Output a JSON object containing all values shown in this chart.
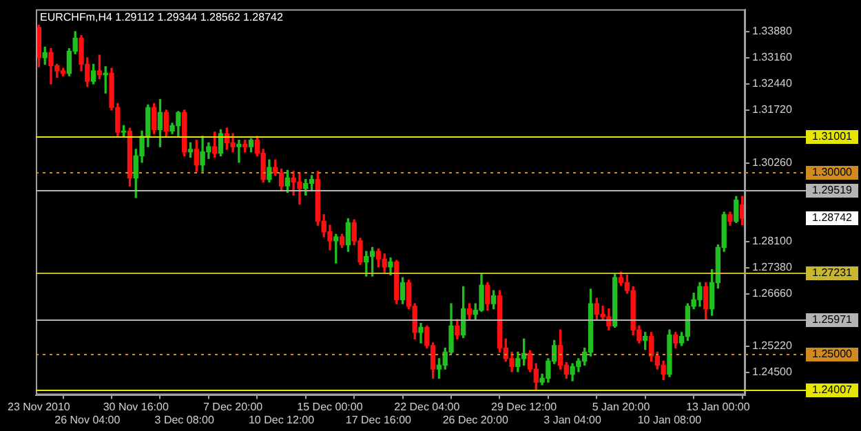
{
  "chart_data": {
    "type": "candlestick",
    "title": "EURCHFm,H4 1.29112 1.29344 1.28562 1.28742",
    "categories": [
      "23 Nov 2010",
      null,
      null,
      null,
      null,
      null,
      null,
      null,
      "26 Nov 04:00",
      null,
      null,
      null,
      null,
      null,
      null,
      null,
      "30 Nov 16:00",
      null,
      null,
      null,
      null,
      null,
      null,
      null,
      "3 Dec 08:00",
      null,
      null,
      null,
      null,
      null,
      null,
      null,
      "7 Dec 20:00",
      null,
      null,
      null,
      null,
      null,
      null,
      null,
      "10 Dec 12:00",
      null,
      null,
      null,
      null,
      null,
      null,
      null,
      "15 Dec 00:00",
      null,
      null,
      null,
      null,
      null,
      null,
      null,
      "17 Dec 16:00",
      null,
      null,
      null,
      null,
      null,
      null,
      null,
      "22 Dec 04:00",
      null,
      null,
      null,
      null,
      null,
      null,
      null,
      "26 Dec 20:00",
      null,
      null,
      null,
      null,
      null,
      null,
      null,
      "29 Dec 12:00",
      null,
      null,
      null,
      null,
      null,
      null,
      null,
      "3 Jan 04:00",
      null,
      null,
      null,
      null,
      null,
      null,
      null,
      "5 Jan 20:00",
      null,
      null,
      null,
      null,
      null,
      null,
      null,
      "10 Jan 08:00",
      null,
      null,
      null,
      null,
      null,
      null,
      null,
      "13 Jan 00:00",
      null,
      null,
      null,
      null
    ],
    "ohlc": [
      [
        1.3399,
        1.3406,
        1.3291,
        1.3316
      ],
      [
        1.3316,
        1.3345,
        1.3298,
        1.333
      ],
      [
        1.333,
        1.3341,
        1.3244,
        1.3294
      ],
      [
        1.3294,
        1.3298,
        1.3262,
        1.328
      ],
      [
        1.328,
        1.3287,
        1.3266,
        1.3273
      ],
      [
        1.3273,
        1.3341,
        1.3266,
        1.3334
      ],
      [
        1.3334,
        1.3388,
        1.3327,
        1.337
      ],
      [
        1.337,
        1.3377,
        1.328,
        1.3298
      ],
      [
        1.3298,
        1.3316,
        1.3237,
        1.3251
      ],
      [
        1.3251,
        1.3298,
        1.3244,
        1.328
      ],
      [
        1.328,
        1.3323,
        1.3258,
        1.3269
      ],
      [
        1.3269,
        1.3291,
        1.3219,
        1.3273
      ],
      [
        1.3273,
        1.3287,
        1.3172,
        1.3179
      ],
      [
        1.3179,
        1.319,
        1.31,
        1.3111
      ],
      [
        1.3111,
        1.3129,
        1.31,
        1.3114
      ],
      [
        1.3114,
        1.3122,
        1.2963,
        1.2985
      ],
      [
        1.2985,
        1.3064,
        1.2931,
        1.3046
      ],
      [
        1.3046,
        1.3114,
        1.3028,
        1.31
      ],
      [
        1.31,
        1.3186,
        1.3071,
        1.3179
      ],
      [
        1.3179,
        1.319,
        1.3107,
        1.3118
      ],
      [
        1.3118,
        1.3201,
        1.3071,
        1.3165
      ],
      [
        1.3165,
        1.3172,
        1.31,
        1.3114
      ],
      [
        1.3114,
        1.3136,
        1.3107,
        1.3129
      ],
      [
        1.3129,
        1.3168,
        1.31,
        1.3165
      ],
      [
        1.3165,
        1.3172,
        1.3046,
        1.3057
      ],
      [
        1.3057,
        1.3082,
        1.3042,
        1.3064
      ],
      [
        1.3064,
        1.3089,
        1.3003,
        1.3021
      ],
      [
        1.3021,
        1.31,
        1.3003,
        1.3057
      ],
      [
        1.3057,
        1.3082,
        1.3039,
        1.3071
      ],
      [
        1.3071,
        1.3111,
        1.3042,
        1.3053
      ],
      [
        1.3053,
        1.3118,
        1.3046,
        1.3107
      ],
      [
        1.3107,
        1.3122,
        1.3064,
        1.3082
      ],
      [
        1.3082,
        1.3107,
        1.3057,
        1.3071
      ],
      [
        1.3071,
        1.3089,
        1.3028,
        1.3078
      ],
      [
        1.3078,
        1.3089,
        1.3057,
        1.3071
      ],
      [
        1.3071,
        1.3093,
        1.3057,
        1.3089
      ],
      [
        1.3089,
        1.31,
        1.3046,
        1.3053
      ],
      [
        1.3053,
        1.3064,
        1.2974,
        1.2981
      ],
      [
        1.2981,
        1.3035,
        1.2974,
        1.3014
      ],
      [
        1.3014,
        1.3035,
        1.2992,
        1.2999
      ],
      [
        1.2999,
        1.301,
        1.2949,
        1.2963
      ],
      [
        1.2963,
        1.3006,
        1.2945,
        1.2985
      ],
      [
        1.2985,
        1.3003,
        1.2938,
        1.2974
      ],
      [
        1.2974,
        1.2999,
        1.2913,
        1.2956
      ],
      [
        1.2956,
        1.2981,
        1.2938,
        1.297
      ],
      [
        1.297,
        1.2992,
        1.2949,
        1.2981
      ],
      [
        1.2981,
        1.3003,
        1.2855,
        1.2866
      ],
      [
        1.2866,
        1.2884,
        1.2823,
        1.2837
      ],
      [
        1.2837,
        1.2855,
        1.2787,
        1.2812
      ],
      [
        1.2812,
        1.283,
        1.2751,
        1.2823
      ],
      [
        1.2823,
        1.283,
        1.2794,
        1.2801
      ],
      [
        1.2801,
        1.2873,
        1.2783,
        1.2862
      ],
      [
        1.2862,
        1.287,
        1.2801,
        1.2812
      ],
      [
        1.2812,
        1.2819,
        1.2747,
        1.2754
      ],
      [
        1.2754,
        1.2783,
        1.2715,
        1.2769
      ],
      [
        1.2769,
        1.2794,
        1.2715,
        1.2783
      ],
      [
        1.2783,
        1.279,
        1.274,
        1.2762
      ],
      [
        1.2762,
        1.2776,
        1.2722,
        1.274
      ],
      [
        1.274,
        1.2765,
        1.2718,
        1.2754
      ],
      [
        1.2754,
        1.2758,
        1.2639,
        1.265
      ],
      [
        1.265,
        1.2711,
        1.2639,
        1.2697
      ],
      [
        1.2697,
        1.2704,
        1.2625,
        1.2632
      ],
      [
        1.2632,
        1.2639,
        1.2542,
        1.256
      ],
      [
        1.256,
        1.2585,
        1.2531,
        1.2574
      ],
      [
        1.2574,
        1.2578,
        1.2517,
        1.2524
      ],
      [
        1.2524,
        1.2531,
        1.2434,
        1.2459
      ],
      [
        1.2459,
        1.2488,
        1.2434,
        1.247
      ],
      [
        1.247,
        1.2517,
        1.2459,
        1.2506
      ],
      [
        1.2506,
        1.2639,
        1.2502,
        1.2578
      ],
      [
        1.2578,
        1.2596,
        1.2542,
        1.2553
      ],
      [
        1.2553,
        1.2686,
        1.2546,
        1.2625
      ],
      [
        1.2625,
        1.2639,
        1.2596,
        1.261
      ],
      [
        1.261,
        1.2639,
        1.2596,
        1.2621
      ],
      [
        1.2621,
        1.2722,
        1.2618,
        1.269
      ],
      [
        1.269,
        1.2697,
        1.2621,
        1.2639
      ],
      [
        1.2639,
        1.2675,
        1.2625,
        1.2661
      ],
      [
        1.2661,
        1.2675,
        1.2506,
        1.2517
      ],
      [
        1.2517,
        1.2542,
        1.2481,
        1.2488
      ],
      [
        1.2488,
        1.2506,
        1.2452,
        1.2466
      ],
      [
        1.2466,
        1.2506,
        1.2452,
        1.2488
      ],
      [
        1.2488,
        1.2542,
        1.247,
        1.2502
      ],
      [
        1.2502,
        1.251,
        1.2452,
        1.2459
      ],
      [
        1.2459,
        1.2474,
        1.2402,
        1.2423
      ],
      [
        1.2423,
        1.2445,
        1.2416,
        1.2434
      ],
      [
        1.2434,
        1.2488,
        1.2423,
        1.2481
      ],
      [
        1.2481,
        1.2538,
        1.2474,
        1.2524
      ],
      [
        1.2524,
        1.2567,
        1.2459,
        1.247
      ],
      [
        1.247,
        1.2477,
        1.2434,
        1.2445
      ],
      [
        1.2445,
        1.2474,
        1.2427,
        1.2466
      ],
      [
        1.2466,
        1.2488,
        1.2452,
        1.2481
      ],
      [
        1.2481,
        1.2517,
        1.247,
        1.2506
      ],
      [
        1.2506,
        1.2679,
        1.2495,
        1.2639
      ],
      [
        1.2639,
        1.2654,
        1.2596,
        1.261
      ],
      [
        1.261,
        1.2632,
        1.2596,
        1.2603
      ],
      [
        1.2603,
        1.2625,
        1.2567,
        1.2578
      ],
      [
        1.2578,
        1.2722,
        1.2574,
        1.2711
      ],
      [
        1.2711,
        1.2726,
        1.269,
        1.2697
      ],
      [
        1.2697,
        1.2718,
        1.2668,
        1.2675
      ],
      [
        1.2675,
        1.2686,
        1.2553,
        1.2567
      ],
      [
        1.2567,
        1.2578,
        1.2531,
        1.2538
      ],
      [
        1.2538,
        1.256,
        1.2513,
        1.2549
      ],
      [
        1.2549,
        1.256,
        1.2481,
        1.2495
      ],
      [
        1.2495,
        1.2506,
        1.2459,
        1.247
      ],
      [
        1.247,
        1.2481,
        1.243,
        1.2445
      ],
      [
        1.2445,
        1.2567,
        1.2438,
        1.2553
      ],
      [
        1.2553,
        1.256,
        1.2517,
        1.2531
      ],
      [
        1.2531,
        1.256,
        1.2524,
        1.2549
      ],
      [
        1.2549,
        1.2639,
        1.2538,
        1.2632
      ],
      [
        1.2632,
        1.2668,
        1.2625,
        1.265
      ],
      [
        1.265,
        1.2697,
        1.2632,
        1.2686
      ],
      [
        1.2686,
        1.2697,
        1.2596,
        1.2625
      ],
      [
        1.2625,
        1.2733,
        1.2607,
        1.2697
      ],
      [
        1.2697,
        1.2801,
        1.2682,
        1.2794
      ],
      [
        1.2794,
        1.2891,
        1.2783,
        1.2884
      ],
      [
        1.2884,
        1.2891,
        1.2855,
        1.2866
      ],
      [
        1.2866,
        1.2934,
        1.2862,
        1.2924
      ],
      [
        1.29112,
        1.29344,
        1.28562,
        1.28742
      ]
    ],
    "colors": [
      "#ff1010",
      "#20c020",
      "#ff1010",
      "#ff1010",
      "#ff1010",
      "#20c020",
      "#20c020",
      "#ff1010",
      "#ff1010",
      "#20c020",
      "#ff1010",
      "#20c020",
      "#ff1010",
      "#ff1010",
      "#20c020",
      "#ff1010",
      "#20c020",
      "#20c020",
      "#20c020",
      "#ff1010",
      "#20c020",
      "#ff1010",
      "#20c020",
      "#20c020",
      "#ff1010",
      "#20c020",
      "#ff1010",
      "#20c020",
      "#20c020",
      "#ff1010",
      "#20c020",
      "#ff1010",
      "#ff1010",
      "#20c020",
      "#ff1010",
      "#20c020",
      "#ff1010",
      "#ff1010",
      "#20c020",
      "#ff1010",
      "#ff1010",
      "#20c020",
      "#ff1010",
      "#ff1010",
      "#20c020",
      "#20c020",
      "#ff1010",
      "#ff1010",
      "#ff1010",
      "#20c020",
      "#ff1010",
      "#20c020",
      "#ff1010",
      "#ff1010",
      "#20c020",
      "#20c020",
      "#ff1010",
      "#ff1010",
      "#20c020",
      "#ff1010",
      "#20c020",
      "#ff1010",
      "#ff1010",
      "#20c020",
      "#ff1010",
      "#ff1010",
      "#20c020",
      "#20c020",
      "#20c020",
      "#ff1010",
      "#20c020",
      "#ff1010",
      "#20c020",
      "#20c020",
      "#ff1010",
      "#20c020",
      "#ff1010",
      "#ff1010",
      "#ff1010",
      "#20c020",
      "#20c020",
      "#ff1010",
      "#ff1010",
      "#20c020",
      "#20c020",
      "#20c020",
      "#ff1010",
      "#ff1010",
      "#20c020",
      "#20c020",
      "#20c020",
      "#20c020",
      "#ff1010",
      "#ff1010",
      "#ff1010",
      "#20c020",
      "#ff1010",
      "#ff1010",
      "#ff1010",
      "#ff1010",
      "#20c020",
      "#ff1010",
      "#ff1010",
      "#ff1010",
      "#20c020",
      "#ff1010",
      "#20c020",
      "#20c020",
      "#20c020",
      "#20c020",
      "#ff1010",
      "#20c020",
      "#20c020",
      "#20c020",
      "#ff1010",
      "#20c020",
      "#ff1010"
    ],
    "ylim": [
      1.2388,
      1.3449
    ],
    "yticks": [
      {
        "value": 1.3388,
        "label": "1.33880"
      },
      {
        "value": 1.3316,
        "label": "1.33160"
      },
      {
        "value": 1.3244,
        "label": "1.32440"
      },
      {
        "value": 1.3172,
        "label": "1.31720"
      },
      {
        "value": 1.3026,
        "label": "1.30260"
      },
      {
        "value": 1.281,
        "label": "1.28100"
      },
      {
        "value": 1.2738,
        "label": "1.27380"
      },
      {
        "value": 1.2666,
        "label": "1.26660"
      },
      {
        "value": 1.2522,
        "label": "1.25220"
      },
      {
        "value": 1.245,
        "label": "1.24500"
      }
    ],
    "ref_lines": [
      {
        "axis": "y",
        "value": 1.31001,
        "label": "1.31001",
        "color": "#e6e600"
      },
      {
        "axis": "y",
        "value": 1.3,
        "label": "1.30000",
        "color": "#d08a20",
        "line_style": "dotted"
      },
      {
        "axis": "y",
        "value": 1.29519,
        "label": "1.29519",
        "color": "#b4b4b4"
      },
      {
        "axis": "y",
        "value": 1.27231,
        "label": "1.27231",
        "color": "#c8b830"
      },
      {
        "axis": "y",
        "value": 1.25971,
        "label": "1.25971",
        "color": "#b4b4b4"
      },
      {
        "axis": "y",
        "value": 1.25,
        "label": "1.25000",
        "color": "#d08a20",
        "line_style": "dotted"
      },
      {
        "axis": "y",
        "value": 1.24007,
        "label": "1.24007",
        "color": "#e6e600"
      }
    ],
    "annotations": [
      "1.28742"
    ],
    "legend": false
  }
}
